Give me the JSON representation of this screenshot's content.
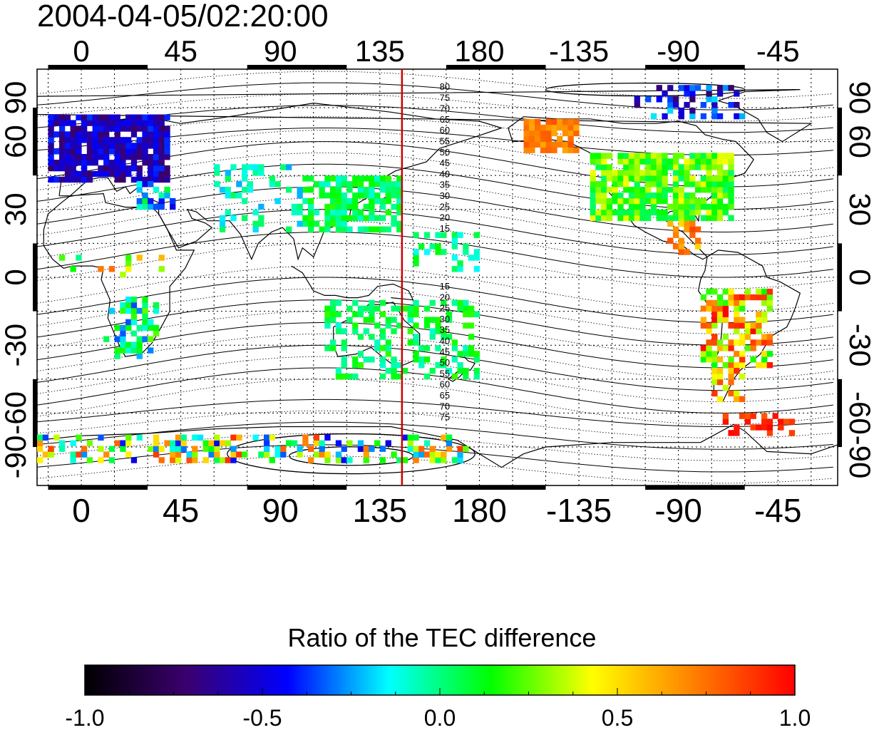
{
  "title": "2004-04-05/02:20:00",
  "map": {
    "top_lon_labels": [
      "0",
      "45",
      "90",
      "135",
      "180",
      "-135",
      "-90",
      "-45"
    ],
    "bottom_lon_labels": [
      "0",
      "45",
      "90",
      "135",
      "180",
      "-135",
      "-90",
      "-45"
    ],
    "left_lat_labels": [
      "90",
      "60",
      "30",
      "0",
      "-30",
      "-60",
      "-90"
    ],
    "right_lat_labels": [
      "90",
      "60",
      "30",
      "0",
      "-30",
      "-60",
      "-90"
    ],
    "lon_ticks": [
      0,
      45,
      90,
      135,
      180,
      -135,
      -90,
      -45
    ],
    "lat_ticks": [
      90,
      60,
      30,
      0,
      -30,
      -60,
      -90
    ],
    "lon_range": [
      -20,
      342
    ],
    "lat_range": [
      -92,
      92
    ],
    "marker_meridian_lon": 145,
    "marker_color": "#cc0000",
    "contour_labels_north": [
      "80",
      "75",
      "70",
      "65",
      "60",
      "55",
      "50",
      "45",
      "40",
      "35",
      "30",
      "25",
      "20",
      "15"
    ],
    "contour_labels_south": [
      "15",
      "20",
      "25",
      "30",
      "35",
      "40",
      "45",
      "50",
      "55",
      "60",
      "65",
      "70",
      "75"
    ]
  },
  "colorbar": {
    "title": "Ratio of the TEC difference",
    "tick_labels": [
      "-1.0",
      "-0.5",
      "0.0",
      "0.5",
      "1.0"
    ],
    "range": [
      -1.0,
      1.0
    ],
    "colors": [
      "#000000",
      "#3a006e",
      "#0000ff",
      "#00ffff",
      "#00ff00",
      "#ffff00",
      "#ff8000",
      "#ff0000"
    ]
  }
}
